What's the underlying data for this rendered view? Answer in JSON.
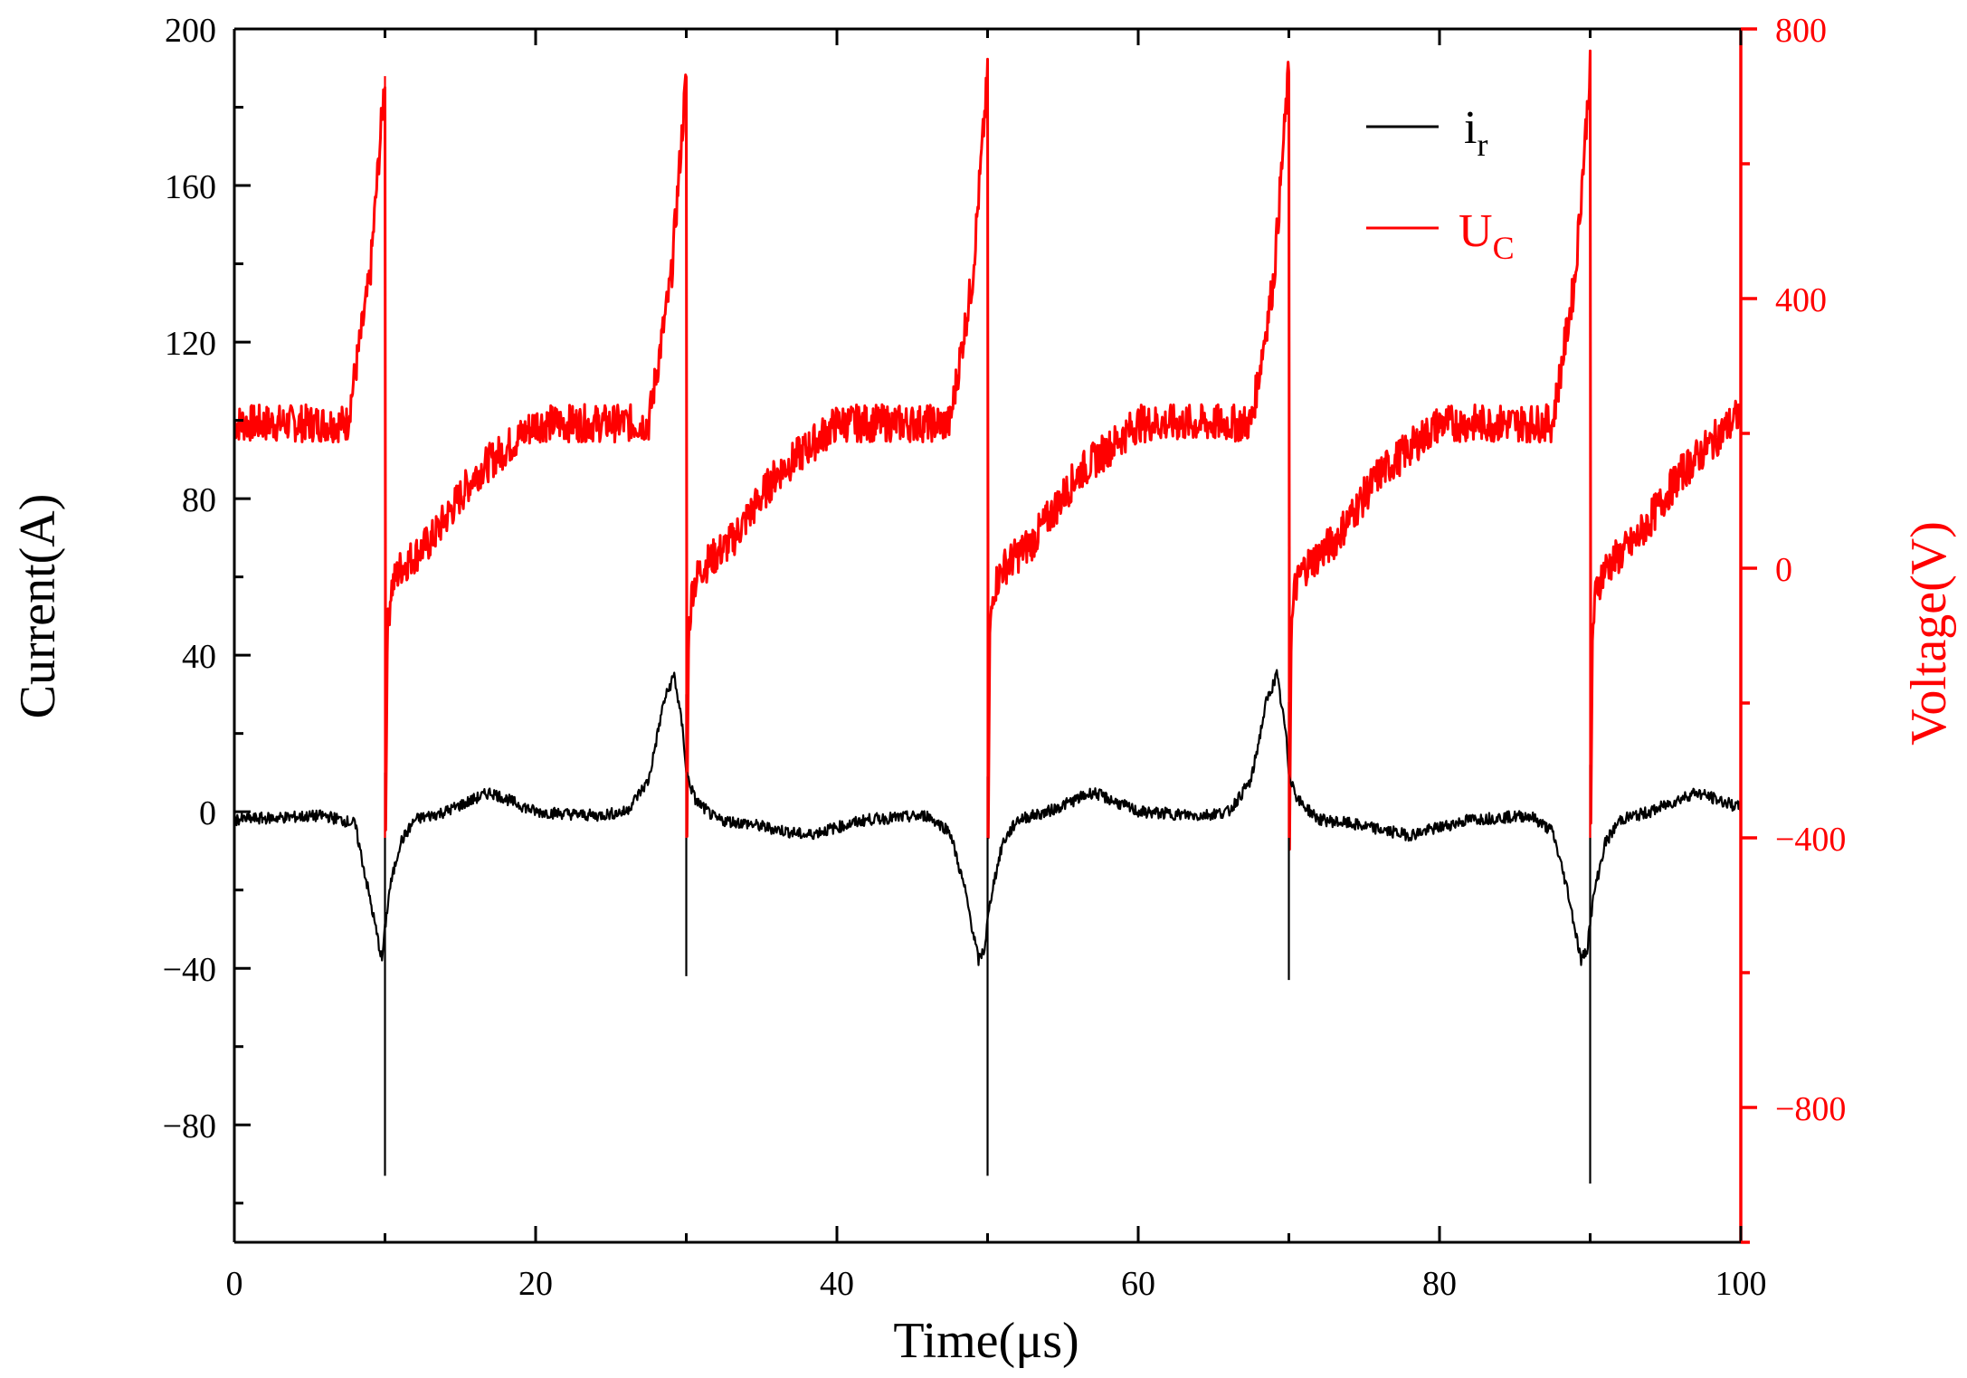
{
  "chart_data": {
    "type": "line",
    "title": "",
    "xlabel": "Time(μs)",
    "ylabel_left": "Current(A)",
    "ylabel_right": "Voltage(V)",
    "xlim": [
      0,
      100
    ],
    "ylim_left": [
      -110,
      200
    ],
    "ylim_right": [
      -1000,
      800
    ],
    "x_ticks": [
      "0",
      "20",
      "40",
      "60",
      "80",
      "100"
    ],
    "y_ticks_left": [
      "200",
      "160",
      "120",
      "80",
      "40",
      "0",
      "−40",
      "−80"
    ],
    "y_ticks_right": [
      "800",
      "400",
      "0",
      "−400",
      "−800"
    ],
    "colors": {
      "current": "#000000",
      "voltage": "#ff0000"
    },
    "series": [
      {
        "name": "i_r",
        "legend_main": "i",
        "legend_sub": "r",
        "axis": "left",
        "color": "#000000",
        "x": [
          0,
          6,
          8,
          9.4,
          9.8,
          10,
          10.3,
          11,
          12,
          14,
          17,
          20,
          24,
          26,
          27.5,
          28.5,
          29.2,
          29.8,
          30,
          30.6,
          32,
          34,
          38,
          42,
          46,
          47.5,
          48.5,
          49.4,
          49.8,
          50,
          50.3,
          51,
          52,
          54,
          57,
          60,
          64,
          66,
          67.5,
          68.5,
          69.2,
          69.8,
          70,
          70.6,
          72,
          74,
          78,
          82,
          86,
          87.5,
          88.5,
          89.4,
          89.8,
          90,
          90.3,
          91,
          92,
          94,
          97,
          100
        ],
        "values": [
          -2,
          -1,
          -3,
          -30,
          -38,
          -30,
          -20,
          -8,
          -2,
          0,
          5,
          0,
          -1,
          0,
          8,
          28,
          35,
          20,
          10,
          3,
          -2,
          -3,
          -6,
          -2,
          -1,
          -5,
          -20,
          -38,
          -35,
          -28,
          -20,
          -8,
          -2,
          0,
          5,
          0,
          -1,
          0,
          8,
          28,
          35,
          20,
          10,
          3,
          -2,
          -3,
          -6,
          -2,
          -1,
          -5,
          -20,
          -38,
          -35,
          -28,
          -20,
          -8,
          -2,
          0,
          5,
          1
        ]
      },
      {
        "name": "U_C",
        "legend_main": "U",
        "legend_sub": "C",
        "axis": "right",
        "color": "#ff0000",
        "x": [
          0,
          7.5,
          9,
          10,
          10.05,
          10.15,
          10.4,
          11,
          13,
          16,
          20,
          27.5,
          29,
          30,
          30.05,
          30.15,
          30.4,
          31,
          33,
          36,
          40,
          47.5,
          49,
          50,
          50.05,
          50.15,
          50.4,
          51,
          53,
          56,
          60,
          67.5,
          69,
          70,
          70.05,
          70.15,
          70.4,
          71,
          73,
          76,
          80,
          87.5,
          89,
          90,
          90.05,
          90.15,
          90.4,
          91,
          93,
          96,
          100
        ],
        "values": [
          215,
          215,
          430,
          730,
          -390,
          -100,
          -30,
          0,
          40,
          140,
          215,
          215,
          430,
          730,
          -400,
          -100,
          -30,
          0,
          40,
          140,
          215,
          215,
          430,
          730,
          -390,
          -100,
          -30,
          0,
          40,
          140,
          215,
          215,
          430,
          740,
          -400,
          -100,
          -30,
          0,
          40,
          140,
          215,
          215,
          430,
          740,
          -390,
          -100,
          -30,
          0,
          40,
          140,
          230
        ]
      }
    ],
    "spikes": [
      {
        "series": "i_r",
        "x": [
          10,
          30,
          50,
          70,
          90
        ],
        "low": [
          -93,
          -42,
          -93,
          -43,
          -95
        ],
        "high": [
          10,
          30,
          9,
          28,
          12
        ]
      },
      {
        "series": "U_C",
        "x": [
          10,
          30,
          50,
          70,
          90
        ],
        "low": [
          -400,
          -400,
          -400,
          -400,
          -400
        ],
        "high": [
          730,
          730,
          730,
          740,
          740
        ]
      }
    ],
    "noise": {
      "U_C": 28,
      "i_r": 1.5
    },
    "legend_position": "top-right"
  }
}
